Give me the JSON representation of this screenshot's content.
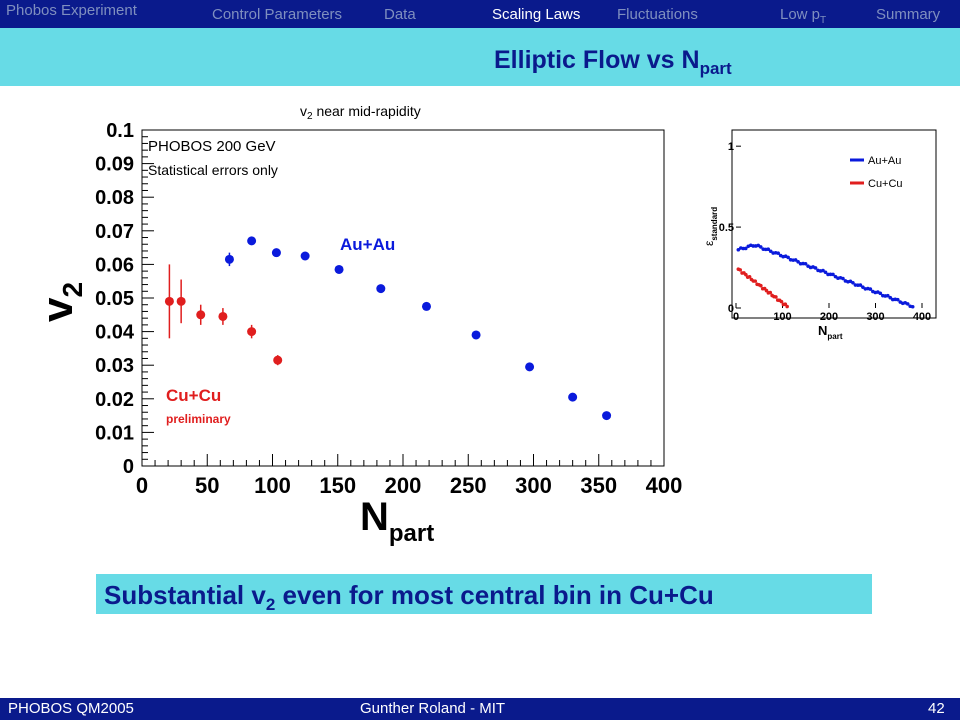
{
  "nav": {
    "brand": "Phobos Experiment",
    "items": [
      "Control Parameters",
      "Data",
      "Scaling Laws",
      "Fluctuations",
      "Low p",
      "Summary"
    ],
    "low_pt_sub": "T",
    "active": "Scaling Laws"
  },
  "slide": {
    "title_main": "Elliptic Flow vs N",
    "title_sub": "part",
    "caption_pre": "Substantial v",
    "caption_sub": "2",
    "caption_post": " even for most central bin in Cu+Cu"
  },
  "footer": {
    "left": "PHOBOS QM2005",
    "center": "Gunther Roland - MIT",
    "right": "42"
  },
  "colors": {
    "nav_bg": "#0a1a8c",
    "title_bg": "#67dbe6",
    "auau": "#0a1adc",
    "cucu": "#e01e1e"
  },
  "chart_data": [
    {
      "type": "scatter",
      "title_pre": "v",
      "title_sub": "2",
      "title_post": " near mid-rapidity",
      "xlabel_main": "N",
      "xlabel_sub": "part",
      "ylabel_main": "v",
      "ylabel_sub": "2",
      "xlim": [
        0,
        400
      ],
      "ylim": [
        0,
        0.1
      ],
      "x_ticks": [
        "0",
        "50",
        "100",
        "150",
        "200",
        "250",
        "300",
        "350",
        "400"
      ],
      "y_ticks": [
        "0",
        "0.01",
        "0.02",
        "0.03",
        "0.04",
        "0.05",
        "0.06",
        "0.07",
        "0.08",
        "0.09",
        "0.1"
      ],
      "annotation_line1": "PHOBOS  200 GeV",
      "annotation_line2": "Statistical errors only",
      "series": [
        {
          "name": "Au+Au",
          "color": "#0a1adc",
          "points": [
            {
              "x": 67,
              "y": 0.0615,
              "err": 0.002
            },
            {
              "x": 84,
              "y": 0.067,
              "err": 0.001
            },
            {
              "x": 103,
              "y": 0.0635,
              "err": 0.001
            },
            {
              "x": 125,
              "y": 0.0625,
              "err": 0.001
            },
            {
              "x": 151,
              "y": 0.0585,
              "err": 0.001
            },
            {
              "x": 183,
              "y": 0.0528,
              "err": 0.001
            },
            {
              "x": 218,
              "y": 0.0475,
              "err": 0.001
            },
            {
              "x": 256,
              "y": 0.039,
              "err": 0.001
            },
            {
              "x": 297,
              "y": 0.0295,
              "err": 0.001
            },
            {
              "x": 330,
              "y": 0.0205,
              "err": 0.001
            },
            {
              "x": 356,
              "y": 0.015,
              "err": 0.001
            }
          ]
        },
        {
          "name": "Cu+Cu",
          "note": "preliminary",
          "color": "#e01e1e",
          "points": [
            {
              "x": 21,
              "y": 0.049,
              "err": 0.011
            },
            {
              "x": 30,
              "y": 0.049,
              "err": 0.0065
            },
            {
              "x": 45,
              "y": 0.045,
              "err": 0.003
            },
            {
              "x": 62,
              "y": 0.0445,
              "err": 0.0025
            },
            {
              "x": 84,
              "y": 0.04,
              "err": 0.002
            },
            {
              "x": 104,
              "y": 0.0315,
              "err": 0.0015
            }
          ]
        }
      ]
    },
    {
      "type": "scatter",
      "ylabel_main": "ε",
      "ylabel_sub": "standard",
      "xlabel_main": "N",
      "xlabel_sub": "part",
      "xlim": [
        0,
        400
      ],
      "ylim": [
        0,
        1.1
      ],
      "x_ticks": [
        "0",
        "100",
        "200",
        "300",
        "400"
      ],
      "y_ticks": [
        "0",
        "0.5",
        "1"
      ],
      "series": [
        {
          "name": "Au+Au",
          "color": "#0a1adc",
          "x_range": [
            5,
            380
          ],
          "y_start": 0.36,
          "y_peak": 0.39,
          "y_end": 0.01
        },
        {
          "name": "Cu+Cu",
          "color": "#e01e1e",
          "x_range": [
            5,
            110
          ],
          "y_start": 0.24,
          "y_end": 0.01
        }
      ]
    }
  ]
}
